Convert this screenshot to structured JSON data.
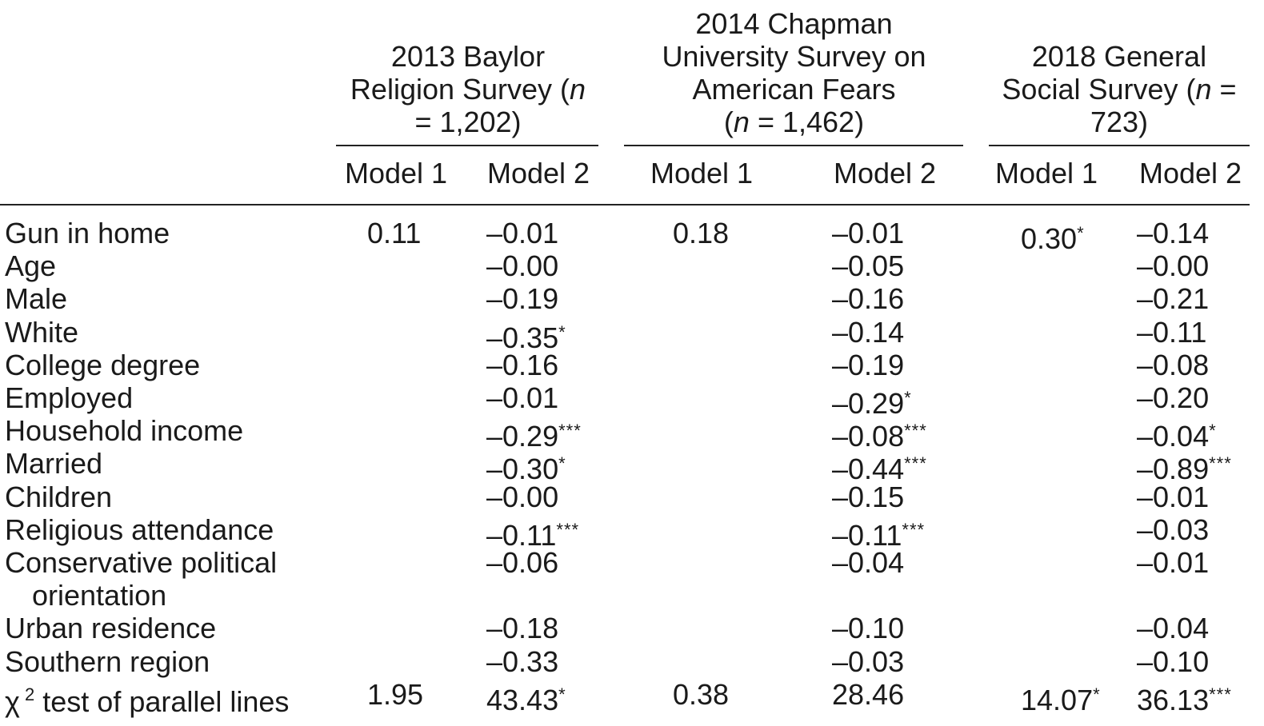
{
  "surveys": [
    {
      "title_lines": [
        "2013 Baylor",
        "Religion Survey (n",
        "= 1,202)"
      ],
      "italic_token": "n"
    },
    {
      "title_lines": [
        "2014 Chapman",
        "University Survey on",
        "American Fears",
        "(n = 1,462)"
      ],
      "italic_token": "n"
    },
    {
      "title_lines": [
        "2018 General",
        "Social Survey (n =",
        "723)"
      ],
      "italic_token": "n"
    }
  ],
  "model_labels": [
    "Model 1",
    "Model 2",
    "Model 1",
    "Model 2",
    "Model 1",
    "Model 2"
  ],
  "rows": [
    {
      "label": "Gun in home",
      "cells": [
        [
          "0.11",
          ""
        ],
        [
          "–0.01",
          ""
        ],
        [
          "0.18",
          ""
        ],
        [
          "–0.01",
          ""
        ],
        [
          "0.30",
          "*"
        ],
        [
          "–0.14",
          ""
        ]
      ]
    },
    {
      "label": "Age",
      "cells": [
        [
          "",
          ""
        ],
        [
          "–0.00",
          ""
        ],
        [
          "",
          ""
        ],
        [
          "–0.05",
          ""
        ],
        [
          "",
          ""
        ],
        [
          "–0.00",
          ""
        ]
      ]
    },
    {
      "label": "Male",
      "cells": [
        [
          "",
          ""
        ],
        [
          "–0.19",
          ""
        ],
        [
          "",
          ""
        ],
        [
          "–0.16",
          ""
        ],
        [
          "",
          ""
        ],
        [
          "–0.21",
          ""
        ]
      ]
    },
    {
      "label": "White",
      "cells": [
        [
          "",
          ""
        ],
        [
          "–0.35",
          "*"
        ],
        [
          "",
          ""
        ],
        [
          "–0.14",
          ""
        ],
        [
          "",
          ""
        ],
        [
          "–0.11",
          ""
        ]
      ]
    },
    {
      "label": "College degree",
      "cells": [
        [
          "",
          ""
        ],
        [
          "–0.16",
          ""
        ],
        [
          "",
          ""
        ],
        [
          "–0.19",
          ""
        ],
        [
          "",
          ""
        ],
        [
          "–0.08",
          ""
        ]
      ]
    },
    {
      "label": "Employed",
      "cells": [
        [
          "",
          ""
        ],
        [
          "–0.01",
          ""
        ],
        [
          "",
          ""
        ],
        [
          "–0.29",
          "*"
        ],
        [
          "",
          ""
        ],
        [
          "–0.20",
          ""
        ]
      ]
    },
    {
      "label": "Household income",
      "cells": [
        [
          "",
          ""
        ],
        [
          "–0.29",
          "***"
        ],
        [
          "",
          ""
        ],
        [
          "–0.08",
          "***"
        ],
        [
          "",
          ""
        ],
        [
          "–0.04",
          "*"
        ]
      ]
    },
    {
      "label": "Married",
      "cells": [
        [
          "",
          ""
        ],
        [
          "–0.30",
          "*"
        ],
        [
          "",
          ""
        ],
        [
          "–0.44",
          "***"
        ],
        [
          "",
          ""
        ],
        [
          "–0.89",
          "***"
        ]
      ]
    },
    {
      "label": "Children",
      "cells": [
        [
          "",
          ""
        ],
        [
          "–0.00",
          ""
        ],
        [
          "",
          ""
        ],
        [
          "–0.15",
          ""
        ],
        [
          "",
          ""
        ],
        [
          "–0.01",
          ""
        ]
      ]
    },
    {
      "label": "Religious attendance",
      "cells": [
        [
          "",
          ""
        ],
        [
          "–0.11",
          "***"
        ],
        [
          "",
          ""
        ],
        [
          "–0.11",
          "***"
        ],
        [
          "",
          ""
        ],
        [
          "–0.03",
          ""
        ]
      ]
    },
    {
      "label": "Conservative political",
      "label2": "orientation",
      "cells": [
        [
          "",
          ""
        ],
        [
          "–0.06",
          ""
        ],
        [
          "",
          ""
        ],
        [
          "–0.04",
          ""
        ],
        [
          "",
          ""
        ],
        [
          "–0.01",
          ""
        ]
      ]
    },
    {
      "label": "Urban residence",
      "cells": [
        [
          "",
          ""
        ],
        [
          "–0.18",
          ""
        ],
        [
          "",
          ""
        ],
        [
          "–0.10",
          ""
        ],
        [
          "",
          ""
        ],
        [
          "–0.04",
          ""
        ]
      ]
    },
    {
      "label": "Southern region",
      "cells": [
        [
          "",
          ""
        ],
        [
          "–0.33",
          ""
        ],
        [
          "",
          ""
        ],
        [
          "–0.03",
          ""
        ],
        [
          "",
          ""
        ],
        [
          "–0.10",
          ""
        ]
      ]
    },
    {
      "label": "χ",
      "label_sup": "2",
      "label_rest": " test of parallel lines",
      "cells": [
        [
          "1.95",
          ""
        ],
        [
          "43.43",
          "*"
        ],
        [
          "0.38",
          ""
        ],
        [
          "28.46",
          ""
        ],
        [
          "14.07",
          "*"
        ],
        [
          "36.13",
          "***"
        ]
      ]
    }
  ]
}
